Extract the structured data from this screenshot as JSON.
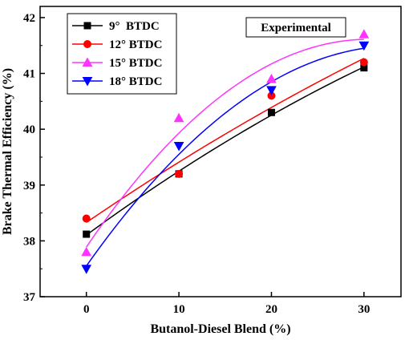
{
  "chart_data": {
    "type": "line",
    "xlabel": "Butanol-Diesel Blend (%)",
    "ylabel": "Brake Thermal Efficiency (%)",
    "xlim": [
      -5,
      34
    ],
    "ylim": [
      37,
      42.2
    ],
    "xticks": [
      0,
      10,
      20,
      30
    ],
    "yticks": [
      37,
      38,
      39,
      40,
      41,
      42
    ],
    "annotation": "Experimental",
    "legend_position": "top-left",
    "grid": false,
    "x": [
      0,
      10,
      20,
      30
    ],
    "series": [
      {
        "name": "9°  BTDC",
        "color": "#000000",
        "marker": "square",
        "values": [
          38.12,
          39.2,
          40.3,
          41.1
        ]
      },
      {
        "name": "12° BTDC",
        "color": "#ff0000",
        "marker": "circle",
        "values": [
          38.4,
          39.2,
          40.6,
          41.2
        ]
      },
      {
        "name": "15° BTDC",
        "color": "#ff33ff",
        "marker": "triangle-up",
        "values": [
          37.8,
          40.2,
          40.9,
          41.7
        ]
      },
      {
        "name": "18° BTDC",
        "color": "#0000ff",
        "marker": "triangle-down",
        "values": [
          37.5,
          39.7,
          40.7,
          41.5
        ]
      }
    ]
  }
}
